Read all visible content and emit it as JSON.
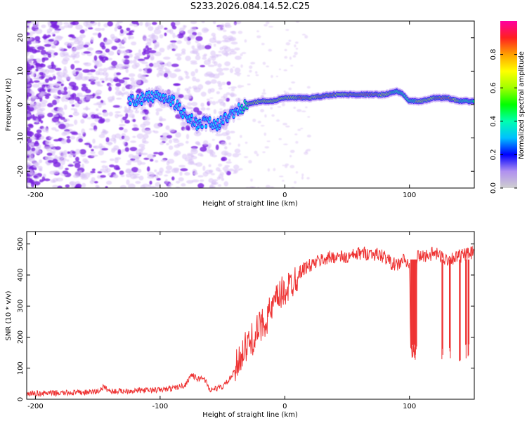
{
  "title": "S233.2026.084.14.52.C25",
  "colors": {
    "snr_line": "#ee3333",
    "blob_light": "#d9c2f5",
    "blob_dark": "#7a22e0",
    "axis": "#000000"
  },
  "chart_data": [
    {
      "type": "heatmap",
      "name": "spectrogram",
      "xlabel": "Height of straight line (km)",
      "ylabel": "Frequency (Hz)",
      "xlim": [
        -207,
        152
      ],
      "ylim": [
        -25,
        25
      ],
      "xticks": [
        -200,
        -100,
        0,
        100
      ],
      "xtick_labels": [
        "-200",
        "-100",
        "0",
        "100"
      ],
      "yticks": [
        -20,
        -10,
        0,
        10,
        20
      ],
      "ytick_labels": [
        "-20",
        "-10",
        "0",
        "10",
        "20"
      ],
      "colorbar": {
        "label": "Normalized spectral amplitude",
        "range": [
          0,
          1
        ],
        "ticks": [
          0.0,
          0.2,
          0.4,
          0.6,
          0.8
        ],
        "tick_labels": [
          "0.0",
          "0.2",
          "0.4",
          "0.6",
          "0.8"
        ],
        "stops": [
          "#cfcfcf",
          "#b090f0",
          "#0000ff",
          "#00c0ff",
          "#00ffb0",
          "#00ff00",
          "#a0ff00",
          "#ffff00",
          "#ffa000",
          "#ff2020",
          "#ff00a0"
        ]
      },
      "ridge": {
        "x": [
          -125,
          -110,
          -100,
          -90,
          -80,
          -70,
          -60,
          -55,
          -50,
          -45,
          -40,
          -35,
          -30,
          -20,
          -10,
          0,
          20,
          40,
          60,
          80,
          90,
          95,
          100,
          110,
          120,
          130,
          140,
          150
        ],
        "freq": [
          1,
          2,
          3,
          1,
          -3,
          -6,
          -5,
          -7,
          -4,
          -4,
          -2,
          -1,
          0,
          1,
          1,
          2,
          2,
          3,
          3,
          3,
          4,
          3,
          1,
          1,
          2,
          2,
          1,
          1
        ]
      }
    },
    {
      "type": "line",
      "name": "snr",
      "xlabel": "Height of straight line (km)",
      "ylabel": "SNR (10 * v/v)",
      "xlim": [
        -207,
        152
      ],
      "ylim": [
        0,
        540
      ],
      "xticks": [
        -200,
        -100,
        0,
        100
      ],
      "xtick_labels": [
        "-200",
        "-100",
        "0",
        "100"
      ],
      "yticks": [
        0,
        100,
        200,
        300,
        400,
        500
      ],
      "ytick_labels": [
        "0",
        "100",
        "200",
        "300",
        "400",
        "500"
      ],
      "x": [
        -207,
        -180,
        -160,
        -150,
        -145,
        -140,
        -120,
        -100,
        -90,
        -80,
        -75,
        -70,
        -65,
        -60,
        -55,
        -50,
        -45,
        -40,
        -35,
        -30,
        -25,
        -20,
        -15,
        -10,
        -5,
        0,
        5,
        10,
        15,
        20,
        25,
        30,
        40,
        50,
        60,
        70,
        80,
        85,
        90,
        95,
        100,
        101,
        105,
        106,
        110,
        120,
        125,
        130,
        140,
        150,
        152
      ],
      "y": [
        18,
        20,
        22,
        25,
        40,
        25,
        28,
        30,
        35,
        45,
        80,
        65,
        70,
        30,
        35,
        40,
        60,
        90,
        150,
        170,
        200,
        230,
        260,
        290,
        330,
        350,
        370,
        400,
        420,
        430,
        440,
        450,
        460,
        455,
        470,
        470,
        460,
        440,
        430,
        450,
        430,
        160,
        150,
        460,
        460,
        470,
        460,
        450,
        460,
        470,
        480
      ],
      "dropouts": [
        [
          101,
          106
        ],
        [
          126,
          127
        ],
        [
          132,
          133
        ],
        [
          140,
          141
        ],
        [
          145,
          146
        ],
        [
          147,
          148
        ]
      ]
    }
  ]
}
